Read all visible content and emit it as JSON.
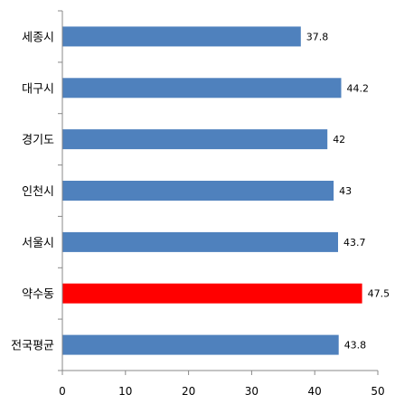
{
  "chart_data": {
    "type": "bar",
    "orientation": "horizontal",
    "categories": [
      "세종시",
      "대구시",
      "경기도",
      "인천시",
      "서울시",
      "약수동",
      "전국평균"
    ],
    "values": [
      37.8,
      44.2,
      42,
      43,
      43.7,
      47.5,
      43.8
    ],
    "data_labels": [
      "37.8",
      "44.2",
      "42",
      "43",
      "43.7",
      "47.5",
      "43.8"
    ],
    "bar_colors": [
      "#4F81BD",
      "#4F81BD",
      "#4F81BD",
      "#4F81BD",
      "#4F81BD",
      "#FF0000",
      "#4F81BD"
    ],
    "xlim": [
      0,
      50
    ],
    "x_ticks": [
      0,
      10,
      20,
      30,
      40,
      50
    ],
    "x_tick_labels": [
      "0",
      "10",
      "20",
      "30",
      "40",
      "50"
    ],
    "grid": false,
    "legend": false,
    "title": "",
    "xlabel": "",
    "ylabel": ""
  }
}
